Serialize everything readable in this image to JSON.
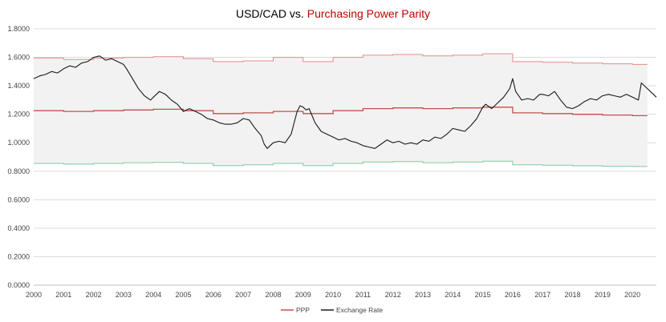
{
  "chart_data": {
    "type": "line",
    "title_part1": "USD/CAD vs.",
    "title_part2": "Purchasing Power Parity",
    "ylim": [
      0,
      1.8
    ],
    "y_ticks": [
      "0.0000",
      "0.2000",
      "0.4000",
      "0.6000",
      "0.8000",
      "1.0000",
      "1.2000",
      "1.4000",
      "1.6000",
      "1.8000"
    ],
    "y_tick_values": [
      0,
      0.2,
      0.4,
      0.6,
      0.8,
      1.0,
      1.2,
      1.4,
      1.6,
      1.8
    ],
    "xlim": [
      2000,
      2020.8
    ],
    "x_ticks": [
      "2000",
      "2001",
      "2002",
      "2003",
      "2004",
      "2005",
      "2006",
      "2007",
      "2008",
      "2009",
      "2010",
      "2011",
      "2012",
      "2013",
      "2014",
      "2015",
      "2016",
      "2017",
      "2018",
      "2019",
      "2020"
    ],
    "x_tick_values": [
      2000,
      2001,
      2002,
      2003,
      2004,
      2005,
      2006,
      2007,
      2008,
      2009,
      2010,
      2011,
      2012,
      2013,
      2014,
      2015,
      2016,
      2017,
      2018,
      2019,
      2020
    ],
    "grid": true,
    "legend_position": "bottom",
    "colors": {
      "ppp": "#c0504d",
      "ppp_upper": "#e08c8a",
      "ppp_lower": "#7fc99a",
      "band": "#f2f2f2",
      "exchange": "#1a1a1a",
      "grid": "#dcdcdc"
    },
    "series": [
      {
        "name": "PPP",
        "x": [
          2000,
          2001,
          2001,
          2002,
          2002,
          2003,
          2003,
          2004,
          2004,
          2005,
          2005,
          2006,
          2006,
          2007,
          2007,
          2008,
          2008,
          2009,
          2009,
          2010,
          2010,
          2011,
          2011,
          2012,
          2012,
          2013,
          2013,
          2014,
          2014,
          2015,
          2015,
          2016,
          2016,
          2017,
          2017,
          2018,
          2018,
          2019,
          2019,
          2020,
          2020,
          2020.5
        ],
        "y": [
          1.225,
          1.225,
          1.22,
          1.22,
          1.225,
          1.225,
          1.23,
          1.23,
          1.235,
          1.235,
          1.225,
          1.225,
          1.205,
          1.205,
          1.21,
          1.21,
          1.22,
          1.22,
          1.205,
          1.205,
          1.225,
          1.225,
          1.24,
          1.24,
          1.245,
          1.245,
          1.24,
          1.24,
          1.245,
          1.245,
          1.25,
          1.25,
          1.21,
          1.21,
          1.205,
          1.205,
          1.2,
          1.2,
          1.195,
          1.195,
          1.19,
          1.19
        ]
      },
      {
        "name": "PPP upper band",
        "x": [
          2000,
          2001,
          2001,
          2002,
          2002,
          2003,
          2003,
          2004,
          2004,
          2005,
          2005,
          2006,
          2006,
          2007,
          2007,
          2008,
          2008,
          2009,
          2009,
          2010,
          2010,
          2011,
          2011,
          2012,
          2012,
          2013,
          2013,
          2014,
          2014,
          2015,
          2015,
          2016,
          2016,
          2017,
          2017,
          2018,
          2018,
          2019,
          2019,
          2020,
          2020,
          2020.5
        ],
        "y": [
          1.595,
          1.595,
          1.585,
          1.585,
          1.595,
          1.595,
          1.6,
          1.6,
          1.605,
          1.605,
          1.59,
          1.59,
          1.57,
          1.57,
          1.575,
          1.575,
          1.6,
          1.6,
          1.57,
          1.57,
          1.6,
          1.6,
          1.615,
          1.615,
          1.62,
          1.62,
          1.61,
          1.61,
          1.615,
          1.615,
          1.625,
          1.625,
          1.57,
          1.57,
          1.565,
          1.565,
          1.56,
          1.56,
          1.555,
          1.555,
          1.55,
          1.55
        ]
      },
      {
        "name": "PPP lower band",
        "x": [
          2000,
          2001,
          2001,
          2002,
          2002,
          2003,
          2003,
          2004,
          2004,
          2005,
          2005,
          2006,
          2006,
          2007,
          2007,
          2008,
          2008,
          2009,
          2009,
          2010,
          2010,
          2011,
          2011,
          2012,
          2012,
          2013,
          2013,
          2014,
          2014,
          2015,
          2015,
          2016,
          2016,
          2017,
          2017,
          2018,
          2018,
          2019,
          2019,
          2020,
          2020,
          2020.5
        ],
        "y": [
          0.855,
          0.855,
          0.85,
          0.85,
          0.855,
          0.855,
          0.86,
          0.86,
          0.862,
          0.862,
          0.855,
          0.855,
          0.84,
          0.84,
          0.845,
          0.845,
          0.855,
          0.855,
          0.84,
          0.84,
          0.855,
          0.855,
          0.865,
          0.865,
          0.868,
          0.868,
          0.86,
          0.86,
          0.865,
          0.865,
          0.87,
          0.87,
          0.845,
          0.845,
          0.842,
          0.842,
          0.838,
          0.838,
          0.835,
          0.835,
          0.833,
          0.833
        ]
      },
      {
        "name": "Exchange Rate",
        "x": [
          2000,
          2000.2,
          2000.4,
          2000.6,
          2000.8,
          2001,
          2001.2,
          2001.4,
          2001.6,
          2001.8,
          2002,
          2002.2,
          2002.4,
          2002.6,
          2002.8,
          2003,
          2003.1,
          2003.3,
          2003.5,
          2003.7,
          2003.9,
          2004,
          2004.2,
          2004.4,
          2004.6,
          2004.8,
          2005,
          2005.2,
          2005.4,
          2005.6,
          2005.8,
          2006,
          2006.2,
          2006.4,
          2006.6,
          2006.8,
          2007,
          2007.2,
          2007.4,
          2007.6,
          2007.7,
          2007.8,
          2007.9,
          2008,
          2008.2,
          2008.4,
          2008.6,
          2008.8,
          2008.9,
          2009,
          2009.1,
          2009.2,
          2009.4,
          2009.6,
          2009.8,
          2010,
          2010.2,
          2010.4,
          2010.6,
          2010.8,
          2011,
          2011.2,
          2011.4,
          2011.6,
          2011.8,
          2012,
          2012.2,
          2012.4,
          2012.6,
          2012.8,
          2013,
          2013.2,
          2013.4,
          2013.6,
          2013.8,
          2014,
          2014.2,
          2014.4,
          2014.6,
          2014.8,
          2015,
          2015.1,
          2015.3,
          2015.5,
          2015.7,
          2015.9,
          2016,
          2016.1,
          2016.3,
          2016.5,
          2016.7,
          2016.9,
          2017,
          2017.2,
          2017.4,
          2017.6,
          2017.8,
          2018,
          2018.2,
          2018.4,
          2018.6,
          2018.8,
          2019,
          2019.2,
          2019.4,
          2019.6,
          2019.8,
          2020,
          2020.2,
          2020.3,
          2020.4,
          2020.6,
          2020.8
        ],
        "y": [
          1.45,
          1.47,
          1.48,
          1.5,
          1.49,
          1.52,
          1.54,
          1.53,
          1.56,
          1.57,
          1.6,
          1.61,
          1.58,
          1.59,
          1.57,
          1.55,
          1.52,
          1.45,
          1.38,
          1.33,
          1.3,
          1.32,
          1.36,
          1.34,
          1.3,
          1.27,
          1.22,
          1.24,
          1.22,
          1.2,
          1.17,
          1.16,
          1.14,
          1.13,
          1.13,
          1.14,
          1.17,
          1.16,
          1.1,
          1.05,
          0.99,
          0.96,
          0.98,
          1.0,
          1.01,
          1.0,
          1.06,
          1.22,
          1.26,
          1.25,
          1.23,
          1.24,
          1.14,
          1.08,
          1.06,
          1.04,
          1.02,
          1.03,
          1.01,
          1.0,
          0.98,
          0.97,
          0.96,
          0.99,
          1.02,
          1.0,
          1.01,
          0.99,
          1.0,
          0.99,
          1.02,
          1.01,
          1.04,
          1.03,
          1.06,
          1.1,
          1.09,
          1.08,
          1.12,
          1.17,
          1.25,
          1.27,
          1.24,
          1.28,
          1.32,
          1.38,
          1.45,
          1.36,
          1.3,
          1.31,
          1.3,
          1.34,
          1.34,
          1.33,
          1.36,
          1.3,
          1.25,
          1.24,
          1.26,
          1.29,
          1.31,
          1.3,
          1.33,
          1.34,
          1.33,
          1.32,
          1.34,
          1.32,
          1.3,
          1.42,
          1.4,
          1.36,
          1.32
        ]
      }
    ],
    "legend": [
      {
        "label": "PPP",
        "color": "#c0504d"
      },
      {
        "label": "Exchange Rate",
        "color": "#1a1a1a"
      }
    ]
  }
}
